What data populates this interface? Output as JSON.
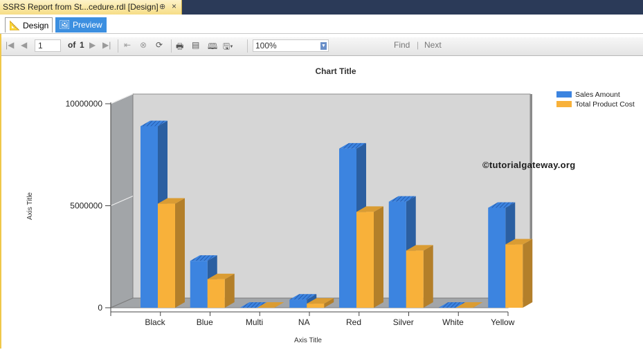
{
  "document_tab": {
    "title": "SSRS Report from St...cedure.rdl [Design]",
    "pin": "⊕",
    "close": "×"
  },
  "view_tabs": [
    {
      "label": "Design",
      "icon": "design-icon"
    },
    {
      "label": "Preview",
      "icon": "preview-icon"
    }
  ],
  "toolbar": {
    "page_current": "1",
    "of_label": "of",
    "page_total": "1",
    "zoom": "100%",
    "find_label": "Find",
    "separator": "|",
    "next_label": "Next"
  },
  "watermark": "©tutorialgateway.org",
  "colors": {
    "sales": "#3c84e0",
    "cost": "#f8b13a",
    "floor": "#a2a5a8",
    "wall": "#d6d6d6"
  },
  "chart_data": {
    "type": "bar",
    "title": "Chart Title",
    "xlabel": "Axis Title",
    "ylabel": "Axis Title",
    "ylim": [
      0,
      10000000
    ],
    "yticks": [
      "0",
      "5000000",
      "10000000"
    ],
    "categories": [
      "Black",
      "Blue",
      "Multi",
      "NA",
      "Red",
      "Silver",
      "White",
      "Yellow"
    ],
    "series": [
      {
        "name": "Sales Amount",
        "values": [
          8900000,
          2300000,
          0,
          400000,
          7800000,
          5200000,
          0,
          4900000
        ]
      },
      {
        "name": "Total Product Cost",
        "values": [
          5100000,
          1400000,
          0,
          200000,
          4700000,
          2800000,
          0,
          3100000
        ]
      }
    ],
    "legend_position": "top-right",
    "style": "3d-clustered"
  }
}
